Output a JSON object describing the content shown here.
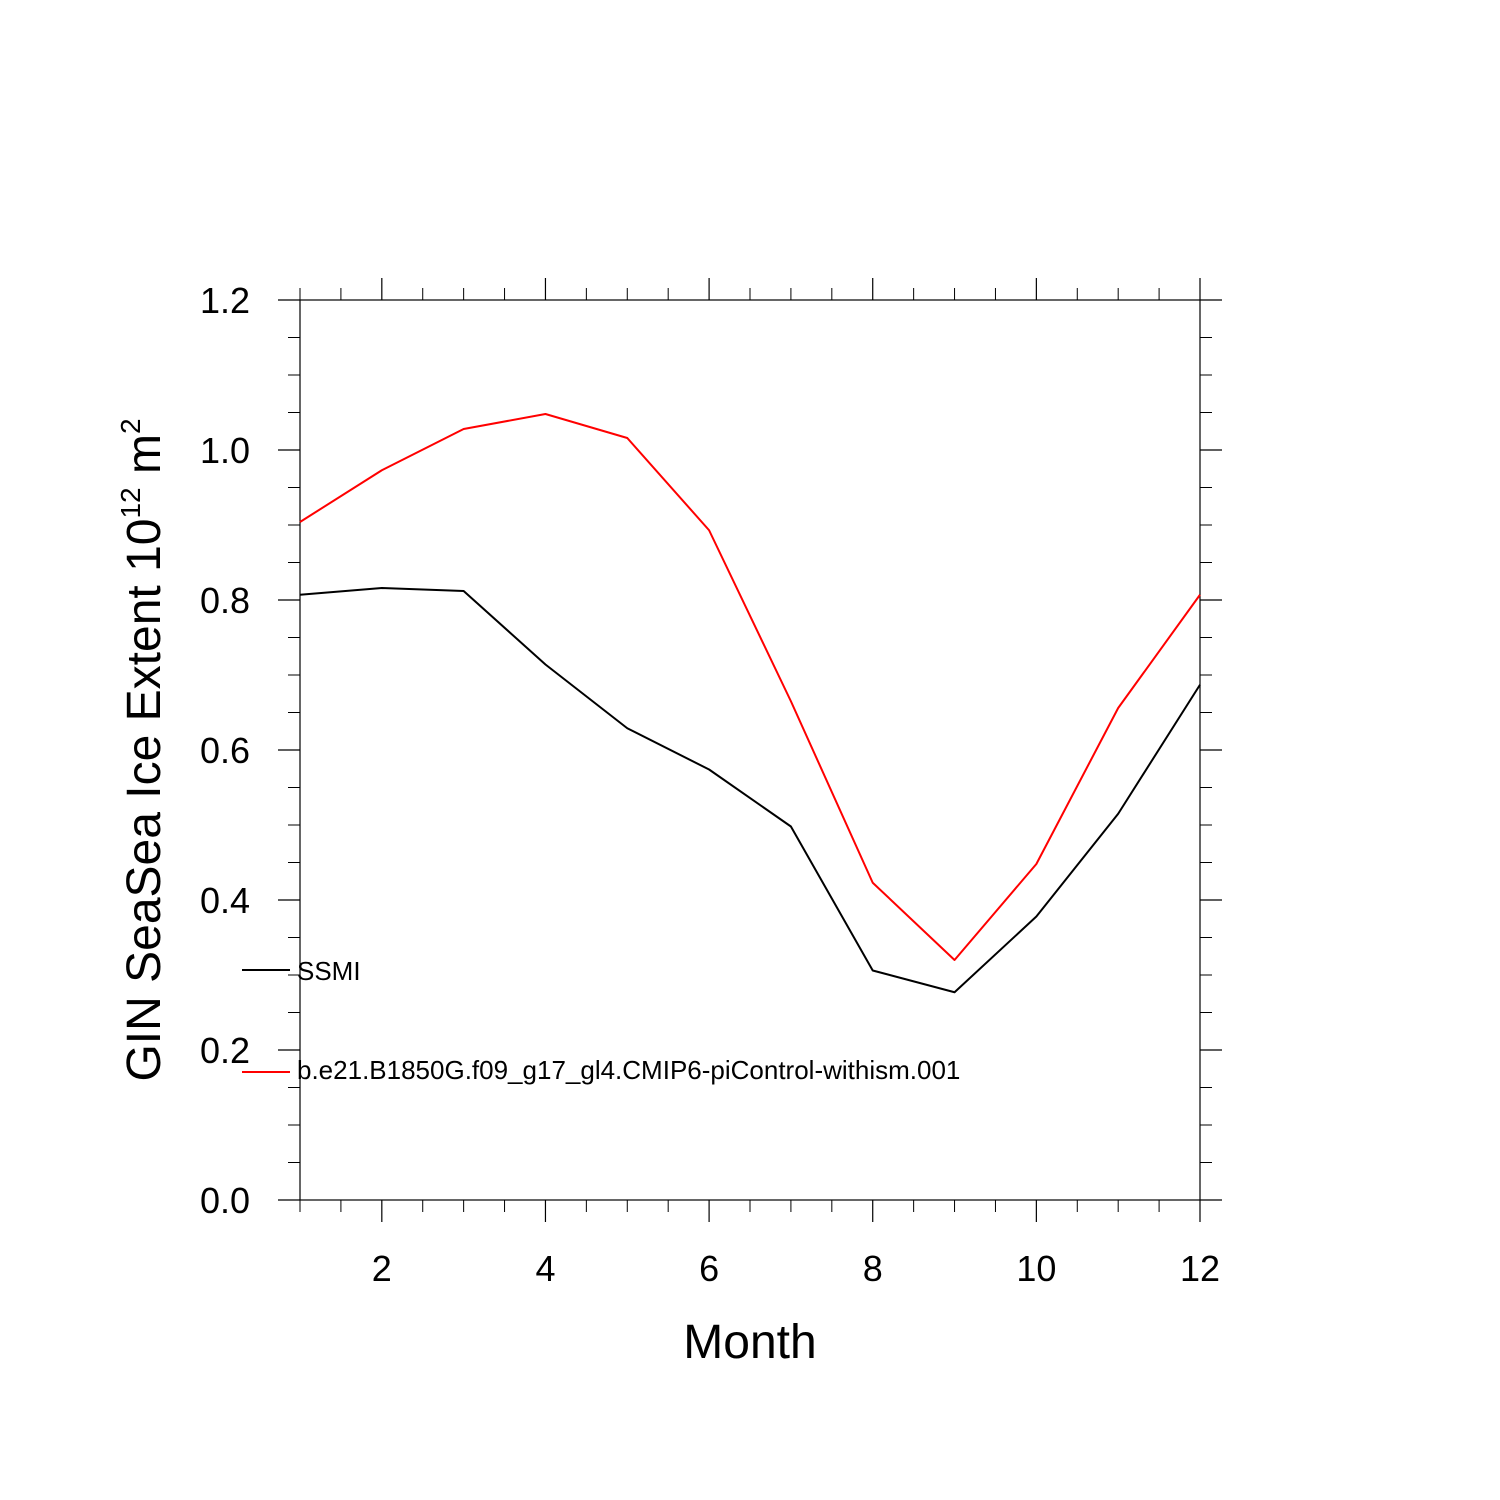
{
  "chart_data": {
    "type": "line",
    "xlabel": "Month",
    "ylabel_main": "GIN SeaSea Ice Extent 10",
    "ylabel_exp1": "12",
    "ylabel_mid": " m",
    "ylabel_exp2": "2",
    "xlim": [
      1,
      12
    ],
    "ylim": [
      0.0,
      1.2
    ],
    "x_ticks": [
      2,
      4,
      6,
      8,
      10,
      12
    ],
    "x_tick_labels": [
      "2",
      "4",
      "6",
      "8",
      "10",
      "12"
    ],
    "y_ticks": [
      0.0,
      0.2,
      0.4,
      0.6,
      0.8,
      1.0,
      1.2
    ],
    "y_tick_labels": [
      "0.0",
      "0.2",
      "0.4",
      "0.6",
      "0.8",
      "1.0",
      "1.2"
    ],
    "x": [
      1,
      2,
      3,
      4,
      5,
      6,
      7,
      8,
      9,
      10,
      11,
      12
    ],
    "series": [
      {
        "name": "SSMI",
        "color": "#000000",
        "values": [
          0.807,
          0.816,
          0.812,
          0.714,
          0.629,
          0.574,
          0.498,
          0.306,
          0.277,
          0.378,
          0.515,
          0.687
        ]
      },
      {
        "name": "b.e21.B1850G.f09_g17_gl4.CMIP6-piControl-withism.001",
        "color": "#ff0000",
        "values": [
          0.904,
          0.973,
          1.028,
          1.048,
          1.016,
          0.893,
          0.665,
          0.423,
          0.32,
          0.448,
          0.656,
          0.807
        ]
      }
    ],
    "legend_placement": "lower-left",
    "grid": false
  }
}
